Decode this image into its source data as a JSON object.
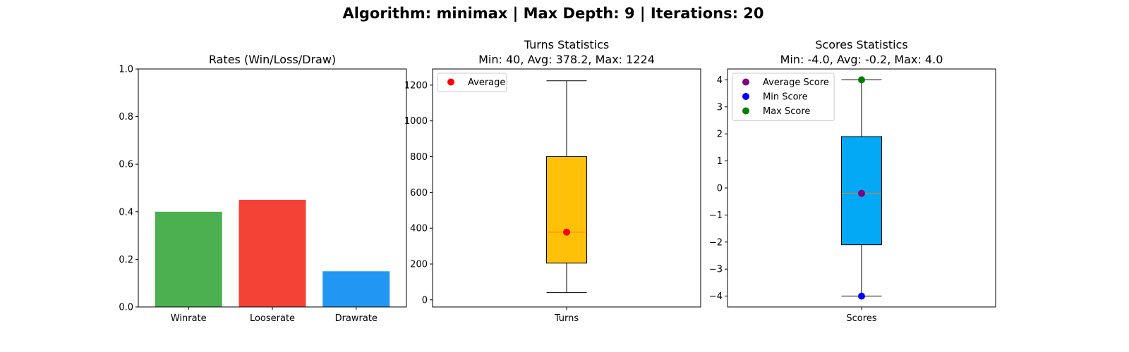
{
  "figure_title": "Algorithm: minimax | Max Depth: 9 | Iterations: 20",
  "chart_data": [
    {
      "type": "bar",
      "title": "Rates (Win/Loss/Draw)",
      "categories": [
        "Winrate",
        "Looserate",
        "Drawrate"
      ],
      "values": [
        0.4,
        0.45,
        0.15
      ],
      "colors": [
        "#4caf50",
        "#f44336",
        "#2196f3"
      ],
      "ylim": [
        0,
        1.0
      ],
      "yticks": [
        "0.0",
        "0.2",
        "0.4",
        "0.6",
        "0.8",
        "1.0"
      ],
      "grid": false
    },
    {
      "type": "box",
      "title_line1": "Turns Statistics",
      "title_line2": "Min: 40, Avg: 378.2, Max: 1224",
      "category": "Turns",
      "box": {
        "min": 40,
        "q1": 205,
        "median": 378,
        "q3": 800,
        "max": 1224
      },
      "box_color": "#ffc107",
      "median_color": "#ff7f0e",
      "ylim": [
        -40,
        1290
      ],
      "yticks": [
        "0",
        "200",
        "400",
        "600",
        "800",
        "1000",
        "1200"
      ],
      "points": [
        {
          "name": "Average",
          "value": 378.2,
          "color": "#ff0000"
        }
      ],
      "legend_loc": "upper-left",
      "grid": false
    },
    {
      "type": "box",
      "title_line1": "Scores Statistics",
      "title_line2": "Min: -4.0, Avg: -0.2, Max: 4.0",
      "category": "Scores",
      "box": {
        "min": -4.0,
        "q1": -2.1,
        "median": -0.2,
        "q3": 1.9,
        "max": 4.0
      },
      "box_color": "#03a9f4",
      "median_color": "#ff7f0e",
      "ylim": [
        -4.4,
        4.4
      ],
      "yticks": [
        "−4",
        "−3",
        "−2",
        "−1",
        "0",
        "1",
        "2",
        "3",
        "4"
      ],
      "points": [
        {
          "name": "Average Score",
          "value": -0.2,
          "color": "#800080"
        },
        {
          "name": "Min Score",
          "value": -4.0,
          "color": "#0000ff"
        },
        {
          "name": "Max Score",
          "value": 4.0,
          "color": "#008000"
        }
      ],
      "legend_loc": "upper-left",
      "grid": false
    }
  ]
}
